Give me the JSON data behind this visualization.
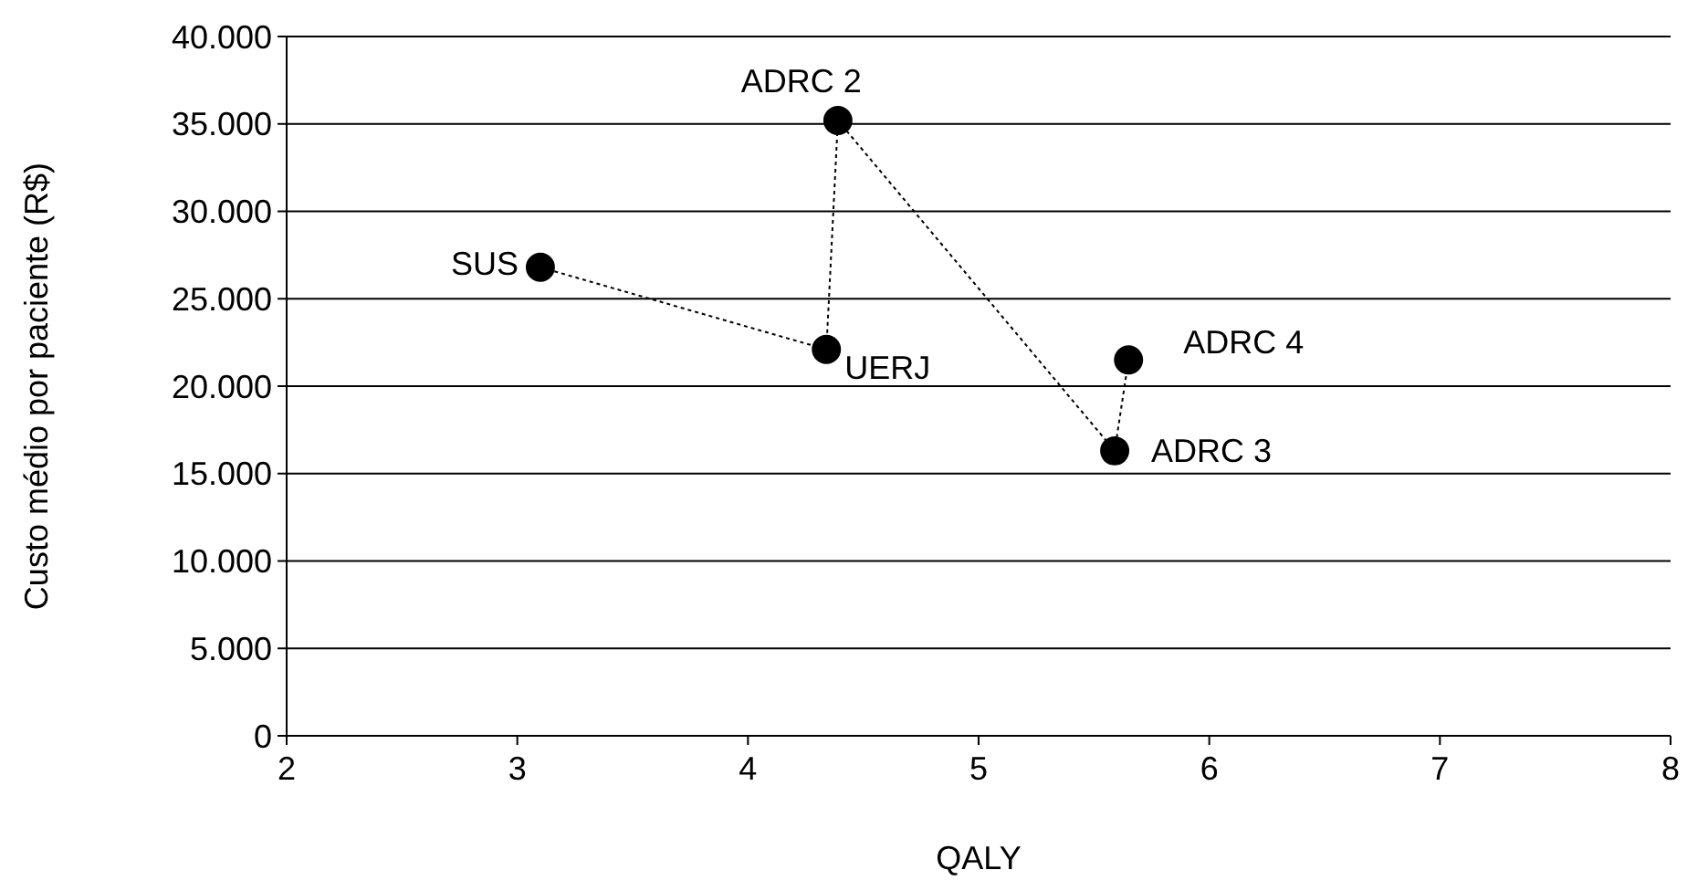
{
  "chart_data": {
    "type": "line",
    "xlabel": "QALY",
    "ylabel": "Custo médio por paciente (R$)",
    "x": [
      3.1,
      4.34,
      4.39,
      5.59,
      5.65
    ],
    "series": [
      {
        "color": "#000000",
        "values": [
          26800,
          22100,
          35200,
          16300,
          21500
        ]
      }
    ],
    "xlim": [
      2,
      8
    ],
    "xticks": [
      2,
      3,
      4,
      5,
      6,
      7,
      8
    ],
    "ylim": [
      0,
      40000
    ],
    "yticks": [
      {
        "value": 0,
        "label": "0"
      },
      {
        "value": 5000,
        "label": "5.000"
      },
      {
        "value": 10000,
        "label": "10.000"
      },
      {
        "value": 15000,
        "label": "15.000"
      },
      {
        "value": 20000,
        "label": "20.000"
      },
      {
        "value": 25000,
        "label": "25.000"
      },
      {
        "value": 30000,
        "label": "30.000"
      },
      {
        "value": 35000,
        "label": "35.000"
      },
      {
        "value": 40000,
        "label": "40.000"
      }
    ],
    "grid": "y",
    "marker": "circle",
    "line_style": "dotted",
    "annotations": [
      {
        "text": "SUS",
        "x": 3.1,
        "y": 26800
      },
      {
        "text": "UERJ",
        "x": 4.34,
        "y": 22100
      },
      {
        "text": "ADRC 2",
        "x": 4.39,
        "y": 35200
      },
      {
        "text": "ADRC 3",
        "x": 5.59,
        "y": 16300
      },
      {
        "text": "ADRC 4",
        "x": 5.65,
        "y": 21500
      }
    ]
  }
}
